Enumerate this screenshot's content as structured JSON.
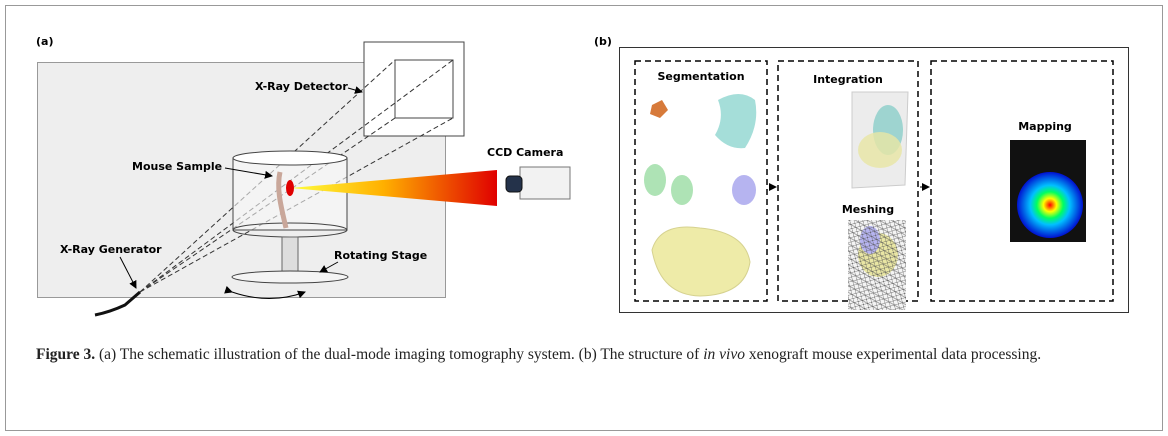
{
  "panel_a": {
    "label": "(a)",
    "labels": {
      "detector": "X-Ray Detector",
      "camera": "CCD Camera",
      "sample": "Mouse Sample",
      "generator": "X-Ray Generator",
      "stage": "Rotating Stage"
    }
  },
  "panel_b": {
    "label": "(b)",
    "steps": {
      "segmentation": "Segmentation",
      "integration": "Integration",
      "meshing": "Meshing",
      "mapping": "Mapping"
    }
  },
  "caption": {
    "label": "Figure 3.",
    "text_1": " (a) The schematic illustration of the dual-mode imaging tomography system. (b) The structure of ",
    "italic": "in vivo",
    "text_2": " xenograft mouse experimental data processing."
  }
}
